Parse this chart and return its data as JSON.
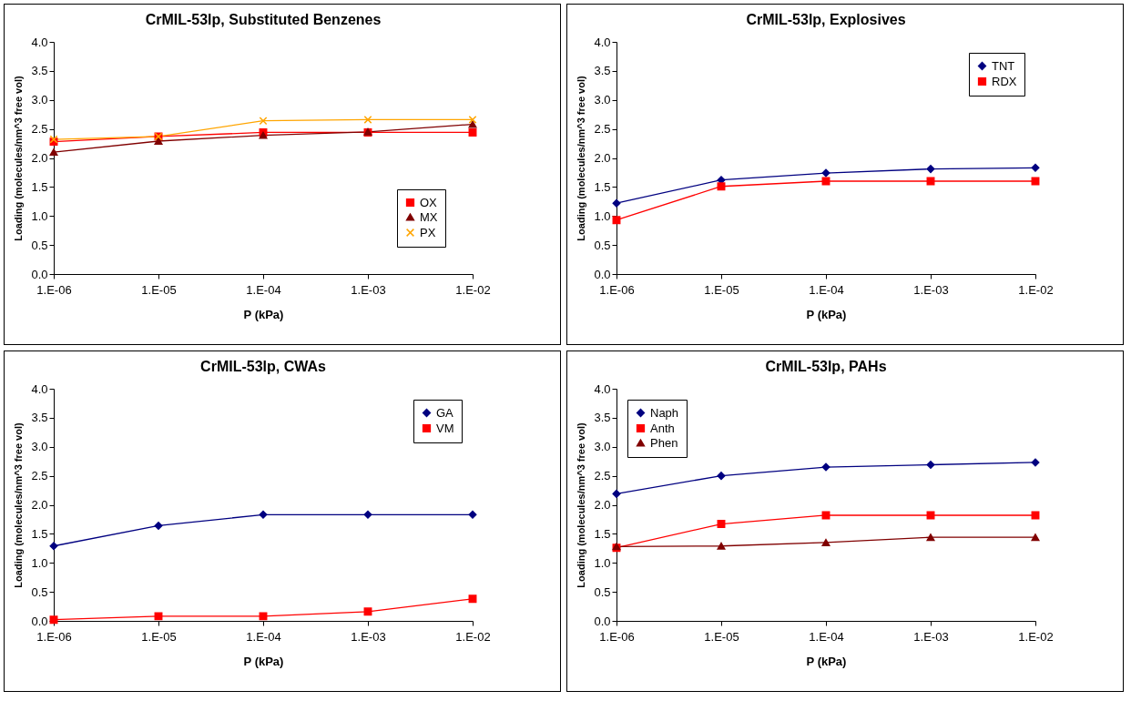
{
  "chart_data": [
    {
      "type": "line",
      "title": "CrMIL-53lp, Substituted Benzenes",
      "xlabel": "P (kPa)",
      "ylabel": "Loading (molecules/nm^3 free vol)",
      "categories": [
        "1.E-06",
        "1.E-05",
        "1.E-04",
        "1.E-03",
        "1.E-02"
      ],
      "ylim": [
        0,
        4
      ],
      "yticks": [
        {
          "value": 0,
          "label": "0.0"
        },
        {
          "value": 0.5,
          "label": "0.5"
        },
        {
          "value": 1,
          "label": "1.0"
        },
        {
          "value": 1.5,
          "label": "1.5"
        },
        {
          "value": 2,
          "label": "2.0"
        },
        {
          "value": 2.5,
          "label": "2.5"
        },
        {
          "value": 3,
          "label": "3.0"
        },
        {
          "value": 3.5,
          "label": "3.5"
        },
        {
          "value": 4,
          "label": "4.0"
        }
      ],
      "grid": false,
      "legend": "bottom right",
      "series": [
        {
          "name": "OX",
          "color": "#ff0000",
          "marker": "square",
          "values": [
            2.28,
            2.37,
            2.44,
            2.44,
            2.44
          ]
        },
        {
          "name": "MX",
          "color": "#800000",
          "marker": "triangle",
          "values": [
            2.1,
            2.29,
            2.39,
            2.45,
            2.58
          ]
        },
        {
          "name": "PX",
          "color": "#ffa500",
          "marker": "cross",
          "values": [
            2.32,
            2.37,
            2.64,
            2.66,
            2.66
          ]
        }
      ]
    },
    {
      "type": "line",
      "title": "CrMIL-53lp, Explosives",
      "xlabel": "P (kPa)",
      "ylabel": "Loading (molecules/nm^3 free vol)",
      "categories": [
        "1.E-06",
        "1.E-05",
        "1.E-04",
        "1.E-03",
        "1.E-02"
      ],
      "ylim": [
        0,
        4
      ],
      "yticks": [
        {
          "value": 0,
          "label": "0.0"
        },
        {
          "value": 0.5,
          "label": "0.5"
        },
        {
          "value": 1,
          "label": "1.0"
        },
        {
          "value": 1.5,
          "label": "1.5"
        },
        {
          "value": 2,
          "label": "2.0"
        },
        {
          "value": 2.5,
          "label": "2.5"
        },
        {
          "value": 3,
          "label": "3.0"
        },
        {
          "value": 3.5,
          "label": "3.5"
        },
        {
          "value": 4,
          "label": "4.0"
        }
      ],
      "grid": false,
      "legend": "top right",
      "series": [
        {
          "name": "TNT",
          "color": "#000080",
          "marker": "diamond",
          "values": [
            1.22,
            1.62,
            1.74,
            1.81,
            1.83
          ]
        },
        {
          "name": "RDX",
          "color": "#ff0000",
          "marker": "square",
          "values": [
            0.93,
            1.51,
            1.6,
            1.6,
            1.6
          ]
        }
      ]
    },
    {
      "type": "line",
      "title": "CrMIL-53lp, CWAs",
      "xlabel": "P (kPa)",
      "ylabel": "Loading (molecules/nm^3 free vol)",
      "categories": [
        "1.E-06",
        "1.E-05",
        "1.E-04",
        "1.E-03",
        "1.E-02"
      ],
      "ylim": [
        0,
        4
      ],
      "yticks": [
        {
          "value": 0,
          "label": "0.0"
        },
        {
          "value": 0.5,
          "label": "0.5"
        },
        {
          "value": 1,
          "label": "1.0"
        },
        {
          "value": 1.5,
          "label": "1.5"
        },
        {
          "value": 2,
          "label": "2.0"
        },
        {
          "value": 2.5,
          "label": "2.5"
        },
        {
          "value": 3,
          "label": "3.0"
        },
        {
          "value": 3.5,
          "label": "3.5"
        },
        {
          "value": 4,
          "label": "4.0"
        }
      ],
      "grid": false,
      "legend": "top right",
      "series": [
        {
          "name": "GA",
          "color": "#000080",
          "marker": "diamond",
          "values": [
            1.29,
            1.64,
            1.83,
            1.83,
            1.83
          ]
        },
        {
          "name": "VM",
          "color": "#ff0000",
          "marker": "square",
          "values": [
            0.02,
            0.08,
            0.08,
            0.16,
            0.38
          ]
        }
      ]
    },
    {
      "type": "line",
      "title": "CrMIL-53lp, PAHs",
      "xlabel": "P (kPa)",
      "ylabel": "Loading (molecules/nm^3 free vol)",
      "categories": [
        "1.E-06",
        "1.E-05",
        "1.E-04",
        "1.E-03",
        "1.E-02"
      ],
      "ylim": [
        0,
        4
      ],
      "yticks": [
        {
          "value": 0,
          "label": "0.0"
        },
        {
          "value": 0.5,
          "label": "0.5"
        },
        {
          "value": 1,
          "label": "1.0"
        },
        {
          "value": 1.5,
          "label": "1.5"
        },
        {
          "value": 2,
          "label": "2.0"
        },
        {
          "value": 2.5,
          "label": "2.5"
        },
        {
          "value": 3,
          "label": "3.0"
        },
        {
          "value": 3.5,
          "label": "3.5"
        },
        {
          "value": 4,
          "label": "4.0"
        }
      ],
      "grid": false,
      "legend": "top left",
      "series": [
        {
          "name": "Naph",
          "color": "#000080",
          "marker": "diamond",
          "values": [
            2.19,
            2.5,
            2.65,
            2.69,
            2.73
          ]
        },
        {
          "name": "Anth",
          "color": "#ff0000",
          "marker": "square",
          "values": [
            1.26,
            1.67,
            1.82,
            1.82,
            1.82
          ]
        },
        {
          "name": "Phen",
          "color": "#800000",
          "marker": "triangle",
          "values": [
            1.28,
            1.29,
            1.35,
            1.44,
            1.44
          ]
        }
      ]
    }
  ]
}
